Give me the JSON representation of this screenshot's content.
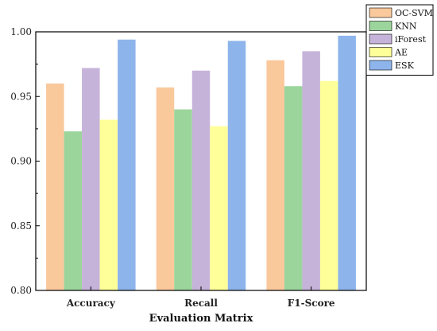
{
  "chart_data": {
    "type": "bar",
    "categories": [
      "Accuracy",
      "Recall",
      "F1-Score"
    ],
    "series": [
      {
        "name": "OC-SVM",
        "color": "#F9C89B",
        "values": [
          0.96,
          0.957,
          0.978
        ]
      },
      {
        "name": "KNN",
        "color": "#9BD59B",
        "values": [
          0.923,
          0.94,
          0.958
        ]
      },
      {
        "name": "iForest",
        "color": "#C6B3DA",
        "values": [
          0.972,
          0.97,
          0.985
        ]
      },
      {
        "name": "AE",
        "color": "#FFFF99",
        "values": [
          0.932,
          0.927,
          0.962
        ]
      },
      {
        "name": "ESK",
        "color": "#8EB4EC",
        "values": [
          0.994,
          0.993,
          0.997
        ]
      }
    ],
    "xlabel": "Evaluation Matrix",
    "ylabel": "",
    "ylim": [
      0.8,
      1.0
    ],
    "yticks": [
      "0.80",
      "0.85",
      "0.90",
      "0.95",
      "1.00"
    ],
    "legend": "top-right",
    "grid": false
  }
}
